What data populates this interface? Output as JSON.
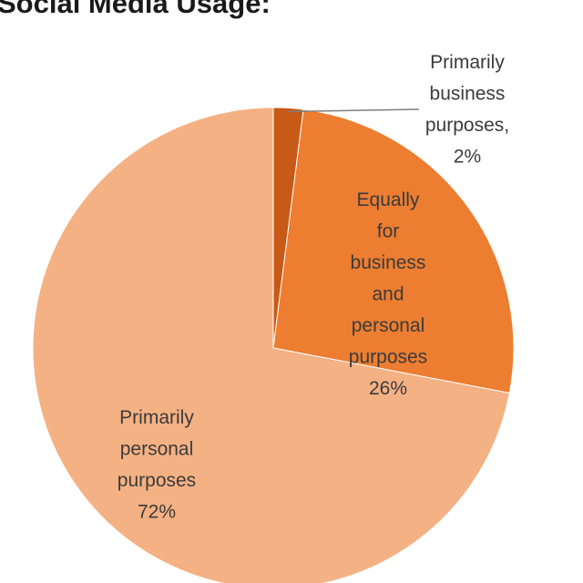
{
  "title": "Social Media Usage:",
  "chart_data": {
    "type": "pie",
    "title": "Social Media Usage:",
    "start_angle_deg": 0,
    "direction": "clockwise",
    "slices": [
      {
        "label": "Primarily business purposes",
        "value": 2,
        "display": "2%",
        "label_lines": [
          "Primarily",
          "business",
          "purposes,",
          "2%"
        ],
        "color": "#c65a16",
        "label_position": "outside-leader"
      },
      {
        "label": "Equally for business and personal purposes",
        "value": 26,
        "display": "26%",
        "label_lines": [
          "Equally",
          "for",
          "business",
          "and",
          "personal",
          "purposes",
          "26%"
        ],
        "color": "#ed7d31",
        "label_position": "inside"
      },
      {
        "label": "Primarily personal purposes",
        "value": 72,
        "display": "72%",
        "label_lines": [
          "Primarily",
          "personal",
          "purposes",
          "72%"
        ],
        "color": "#f4b183",
        "label_position": "inside"
      }
    ]
  }
}
